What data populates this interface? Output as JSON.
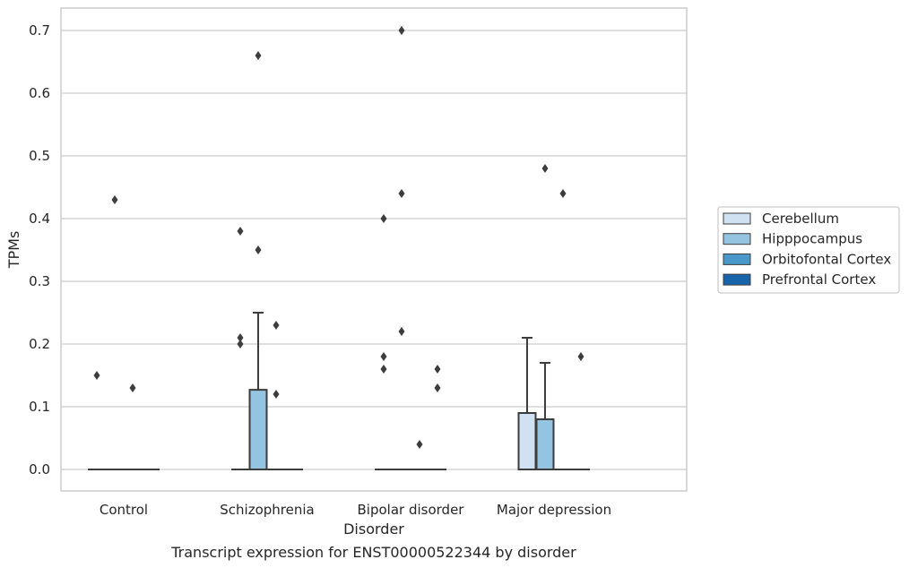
{
  "chart_data": {
    "type": "box",
    "xlabel": "Disorder",
    "ylabel": "TPMs",
    "caption": "Transcript expression for ENST00000522344 by disorder",
    "ylim": [
      -0.035,
      0.735
    ],
    "yticks": [
      "0.0",
      "0.1",
      "0.2",
      "0.3",
      "0.4",
      "0.5",
      "0.6",
      "0.7"
    ],
    "grid": "horizontal",
    "legend_position": "right",
    "categories": [
      "Control",
      "Schizophrenia",
      "Bipolar disorder",
      "Major depression"
    ],
    "series": [
      {
        "name": "Cerebellum",
        "color": "#d0e1f2"
      },
      {
        "name": "Hipppocampus",
        "color": "#94c4df"
      },
      {
        "name": "Orbitofontal Cortex",
        "color": "#4a98c9"
      },
      {
        "name": "Prefrontal Cortex",
        "color": "#1764ab"
      }
    ],
    "boxes": [
      [
        {
          "q1": 0,
          "median": 0,
          "q3": 0,
          "whisker_low": 0,
          "whisker_high": 0,
          "outliers": [
            0.15
          ]
        },
        {
          "q1": 0,
          "median": 0,
          "q3": 0,
          "whisker_low": 0,
          "whisker_high": 0,
          "outliers": [
            0.43
          ]
        },
        {
          "q1": 0,
          "median": 0,
          "q3": 0,
          "whisker_low": 0,
          "whisker_high": 0,
          "outliers": [
            0.13
          ]
        },
        {
          "q1": 0,
          "median": 0,
          "q3": 0,
          "whisker_low": 0,
          "whisker_high": 0,
          "outliers": []
        }
      ],
      [
        {
          "q1": 0,
          "median": 0,
          "q3": 0,
          "whisker_low": 0,
          "whisker_high": 0,
          "outliers": [
            0.38,
            0.21,
            0.2
          ]
        },
        {
          "q1": 0,
          "median": 0,
          "q3": 0.127,
          "whisker_low": 0,
          "whisker_high": 0.25,
          "outliers": [
            0.66,
            0.35
          ]
        },
        {
          "q1": 0,
          "median": 0,
          "q3": 0,
          "whisker_low": 0,
          "whisker_high": 0,
          "outliers": [
            0.23,
            0.12
          ]
        },
        {
          "q1": 0,
          "median": 0,
          "q3": 0,
          "whisker_low": 0,
          "whisker_high": 0,
          "outliers": []
        }
      ],
      [
        {
          "q1": 0,
          "median": 0,
          "q3": 0,
          "whisker_low": 0,
          "whisker_high": 0,
          "outliers": [
            0.4,
            0.18,
            0.16
          ]
        },
        {
          "q1": 0,
          "median": 0,
          "q3": 0,
          "whisker_low": 0,
          "whisker_high": 0,
          "outliers": [
            0.7,
            0.44,
            0.22
          ]
        },
        {
          "q1": 0,
          "median": 0,
          "q3": 0,
          "whisker_low": 0,
          "whisker_high": 0,
          "outliers": [
            0.04
          ]
        },
        {
          "q1": 0,
          "median": 0,
          "q3": 0,
          "whisker_low": 0,
          "whisker_high": 0,
          "outliers": [
            0.16,
            0.13
          ]
        }
      ],
      [
        {
          "q1": 0,
          "median": 0,
          "q3": 0.09,
          "whisker_low": 0,
          "whisker_high": 0.21,
          "outliers": []
        },
        {
          "q1": 0,
          "median": 0,
          "q3": 0.08,
          "whisker_low": 0,
          "whisker_high": 0.17,
          "outliers": [
            0.48
          ]
        },
        {
          "q1": 0,
          "median": 0,
          "q3": 0,
          "whisker_low": 0,
          "whisker_high": 0,
          "outliers": [
            0.44
          ]
        },
        {
          "q1": 0,
          "median": 0,
          "q3": 0,
          "whisker_low": 0,
          "whisker_high": 0,
          "outliers": [
            0.18
          ]
        }
      ]
    ],
    "styles": {
      "line_color": "#3d3d3d",
      "grid_color": "#cccccc",
      "frame_color": "#cccccc",
      "text_color": "#262626"
    }
  }
}
